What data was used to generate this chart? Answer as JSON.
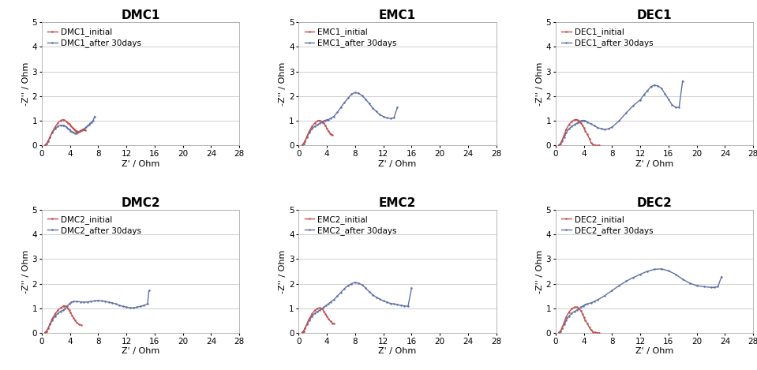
{
  "panels": [
    {
      "title": "DMC1",
      "initial_label": "DMC1_initial",
      "after_label": "DMC1_after 30days",
      "initial_color": "#c0504d",
      "after_color": "#6070a8",
      "xlim": [
        0,
        28
      ],
      "ylim": [
        0,
        5
      ],
      "xticks": [
        0,
        4,
        8,
        12,
        16,
        20,
        24,
        28
      ],
      "yticks": [
        0,
        1,
        2,
        3,
        4,
        5
      ],
      "initial_x": [
        0.5,
        0.7,
        0.9,
        1.2,
        1.5,
        1.9,
        2.3,
        2.7,
        3.0,
        3.2,
        3.5,
        3.7,
        3.9,
        4.1,
        4.2,
        4.4,
        4.5,
        4.6,
        4.7,
        4.8,
        4.9,
        5.0,
        5.1,
        5.2,
        5.4,
        5.6,
        5.8,
        6.0,
        6.2
      ],
      "initial_y": [
        0.02,
        0.08,
        0.18,
        0.35,
        0.55,
        0.75,
        0.92,
        1.02,
        1.05,
        1.03,
        0.98,
        0.92,
        0.88,
        0.82,
        0.78,
        0.72,
        0.68,
        0.65,
        0.62,
        0.6,
        0.58,
        0.56,
        0.55,
        0.56,
        0.58,
        0.62,
        0.65,
        0.65,
        0.62
      ],
      "after_x": [
        0.5,
        0.7,
        0.9,
        1.2,
        1.5,
        1.9,
        2.3,
        2.7,
        3.0,
        3.2,
        3.5,
        3.7,
        3.9,
        4.1,
        4.3,
        4.5,
        4.7,
        4.9,
        5.1,
        5.3,
        5.5,
        5.7,
        5.9,
        6.1,
        6.3,
        6.5,
        6.7,
        6.9,
        7.1,
        7.3,
        7.5
      ],
      "after_y": [
        0.02,
        0.08,
        0.18,
        0.35,
        0.52,
        0.68,
        0.78,
        0.82,
        0.82,
        0.8,
        0.75,
        0.7,
        0.65,
        0.6,
        0.56,
        0.52,
        0.5,
        0.5,
        0.52,
        0.55,
        0.58,
        0.62,
        0.66,
        0.7,
        0.75,
        0.8,
        0.85,
        0.9,
        0.95,
        1.02,
        1.18
      ]
    },
    {
      "title": "EMC1",
      "initial_label": "EMC1_initial",
      "after_label": "EMC1_after 30days",
      "initial_color": "#c0504d",
      "after_color": "#6070a8",
      "xlim": [
        0,
        28
      ],
      "ylim": [
        0,
        5
      ],
      "xticks": [
        0,
        4,
        8,
        12,
        16,
        20,
        24,
        28
      ],
      "yticks": [
        0,
        1,
        2,
        3,
        4,
        5
      ],
      "initial_x": [
        0.5,
        0.7,
        0.9,
        1.2,
        1.5,
        1.9,
        2.3,
        2.7,
        3.0,
        3.3,
        3.6,
        3.8,
        4.0,
        4.2,
        4.4,
        4.6,
        4.8
      ],
      "initial_y": [
        0.02,
        0.08,
        0.18,
        0.38,
        0.58,
        0.78,
        0.92,
        1.0,
        1.02,
        0.98,
        0.9,
        0.8,
        0.7,
        0.6,
        0.5,
        0.45,
        0.42
      ],
      "after_x": [
        0.5,
        0.7,
        0.9,
        1.2,
        1.5,
        1.9,
        2.3,
        2.7,
        3.0,
        3.3,
        3.6,
        3.8,
        4.0,
        4.2,
        4.5,
        5.0,
        5.5,
        6.0,
        6.5,
        7.0,
        7.5,
        8.0,
        8.5,
        9.0,
        9.5,
        10.0,
        10.5,
        11.0,
        11.5,
        12.0,
        12.5,
        13.0,
        13.5,
        14.0
      ],
      "after_y": [
        0.02,
        0.08,
        0.18,
        0.35,
        0.52,
        0.68,
        0.78,
        0.85,
        0.9,
        0.95,
        1.0,
        1.02,
        1.05,
        1.05,
        1.1,
        1.18,
        1.35,
        1.55,
        1.75,
        1.92,
        2.08,
        2.15,
        2.12,
        2.02,
        1.88,
        1.7,
        1.52,
        1.38,
        1.25,
        1.18,
        1.12,
        1.1,
        1.12,
        1.55
      ]
    },
    {
      "title": "DEC1",
      "initial_label": "DEC1_initial",
      "after_label": "DEC1_after 30days",
      "initial_color": "#c0504d",
      "after_color": "#6070a8",
      "xlim": [
        0,
        28
      ],
      "ylim": [
        0,
        5
      ],
      "xticks": [
        0,
        4,
        8,
        12,
        16,
        20,
        24,
        28
      ],
      "yticks": [
        0,
        1,
        2,
        3,
        4,
        5
      ],
      "initial_x": [
        0.5,
        0.7,
        0.9,
        1.2,
        1.5,
        1.9,
        2.3,
        2.7,
        3.0,
        3.3,
        3.6,
        3.8,
        4.0,
        4.2,
        4.5,
        4.8,
        5.0,
        5.3,
        5.6,
        5.9,
        6.2
      ],
      "initial_y": [
        0.02,
        0.08,
        0.2,
        0.42,
        0.65,
        0.85,
        0.98,
        1.05,
        1.05,
        1.02,
        0.92,
        0.82,
        0.72,
        0.6,
        0.45,
        0.28,
        0.12,
        0.04,
        0.01,
        0.0,
        0.0
      ],
      "after_x": [
        0.5,
        0.7,
        0.9,
        1.2,
        1.5,
        1.9,
        2.3,
        2.7,
        3.0,
        3.3,
        3.6,
        3.8,
        4.0,
        4.2,
        4.5,
        5.0,
        5.5,
        6.0,
        6.5,
        7.0,
        7.5,
        8.0,
        9.0,
        10.0,
        11.0,
        12.0,
        12.5,
        13.0,
        13.5,
        14.0,
        14.5,
        15.0,
        15.5,
        16.0,
        16.5,
        17.0,
        17.5,
        18.0
      ],
      "after_y": [
        0.02,
        0.08,
        0.18,
        0.35,
        0.52,
        0.68,
        0.78,
        0.85,
        0.9,
        0.95,
        1.0,
        1.02,
        1.02,
        1.0,
        0.95,
        0.88,
        0.8,
        0.72,
        0.68,
        0.65,
        0.68,
        0.75,
        1.0,
        1.32,
        1.62,
        1.85,
        2.05,
        2.22,
        2.38,
        2.45,
        2.42,
        2.32,
        2.1,
        1.88,
        1.65,
        1.55,
        1.55,
        2.62
      ]
    },
    {
      "title": "DMC2",
      "initial_label": "DMC2_initial",
      "after_label": "DMC2_after 30days",
      "initial_color": "#c0504d",
      "after_color": "#6070a8",
      "xlim": [
        0,
        28
      ],
      "ylim": [
        0,
        5
      ],
      "xticks": [
        0,
        4,
        8,
        12,
        16,
        20,
        24,
        28
      ],
      "yticks": [
        0,
        1,
        2,
        3,
        4,
        5
      ],
      "initial_x": [
        0.5,
        0.7,
        0.9,
        1.2,
        1.5,
        1.9,
        2.3,
        2.7,
        3.0,
        3.2,
        3.5,
        3.7,
        3.9,
        4.1,
        4.3,
        4.5,
        4.7,
        5.0,
        5.3,
        5.6
      ],
      "initial_y": [
        0.02,
        0.08,
        0.18,
        0.38,
        0.58,
        0.78,
        0.92,
        1.02,
        1.08,
        1.1,
        1.08,
        1.0,
        0.92,
        0.82,
        0.72,
        0.62,
        0.52,
        0.42,
        0.35,
        0.32
      ],
      "after_x": [
        0.5,
        0.7,
        0.9,
        1.2,
        1.5,
        1.9,
        2.3,
        2.7,
        3.0,
        3.3,
        3.6,
        3.9,
        4.2,
        4.5,
        5.0,
        5.5,
        6.0,
        6.5,
        7.0,
        7.5,
        8.0,
        8.5,
        9.0,
        9.5,
        10.0,
        10.5,
        11.0,
        11.5,
        12.0,
        12.5,
        13.0,
        13.5,
        14.0,
        14.5,
        15.0,
        15.2
      ],
      "after_y": [
        0.02,
        0.08,
        0.18,
        0.35,
        0.52,
        0.68,
        0.8,
        0.88,
        0.92,
        0.98,
        1.08,
        1.18,
        1.25,
        1.28,
        1.28,
        1.26,
        1.25,
        1.26,
        1.28,
        1.3,
        1.32,
        1.3,
        1.28,
        1.25,
        1.22,
        1.18,
        1.12,
        1.08,
        1.05,
        1.02,
        1.02,
        1.05,
        1.08,
        1.12,
        1.18,
        1.72
      ]
    },
    {
      "title": "EMC2",
      "initial_label": "EMC2_initial",
      "after_label": "EMC2_after 30days",
      "initial_color": "#c0504d",
      "after_color": "#6070a8",
      "xlim": [
        0,
        28
      ],
      "ylim": [
        0,
        5
      ],
      "xticks": [
        0,
        4,
        8,
        12,
        16,
        20,
        24,
        28
      ],
      "yticks": [
        0,
        1,
        2,
        3,
        4,
        5
      ],
      "initial_x": [
        0.5,
        0.7,
        0.9,
        1.2,
        1.5,
        1.9,
        2.3,
        2.7,
        3.0,
        3.3,
        3.6,
        3.8,
        4.0,
        4.2,
        4.5,
        4.8,
        5.0
      ],
      "initial_y": [
        0.02,
        0.08,
        0.18,
        0.38,
        0.58,
        0.78,
        0.92,
        1.0,
        1.02,
        0.98,
        0.88,
        0.78,
        0.68,
        0.58,
        0.48,
        0.4,
        0.38
      ],
      "after_x": [
        0.5,
        0.7,
        0.9,
        1.2,
        1.5,
        1.9,
        2.3,
        2.7,
        3.0,
        3.3,
        3.6,
        3.9,
        4.2,
        4.5,
        5.0,
        5.5,
        6.0,
        6.5,
        7.0,
        7.5,
        8.0,
        8.5,
        9.0,
        9.5,
        10.0,
        10.5,
        11.0,
        11.5,
        12.0,
        12.5,
        13.0,
        13.5,
        14.0,
        14.5,
        15.0,
        15.5,
        16.0
      ],
      "after_y": [
        0.02,
        0.08,
        0.18,
        0.35,
        0.52,
        0.68,
        0.8,
        0.88,
        0.92,
        0.98,
        1.05,
        1.12,
        1.18,
        1.25,
        1.35,
        1.5,
        1.65,
        1.8,
        1.92,
        2.0,
        2.05,
        2.02,
        1.95,
        1.82,
        1.68,
        1.55,
        1.45,
        1.38,
        1.3,
        1.25,
        1.2,
        1.18,
        1.15,
        1.12,
        1.1,
        1.08,
        1.82
      ]
    },
    {
      "title": "DEC2",
      "initial_label": "DEC2_initial",
      "after_label": "DEC2_after 30days",
      "initial_color": "#c0504d",
      "after_color": "#6070a8",
      "xlim": [
        0,
        28
      ],
      "ylim": [
        0,
        5
      ],
      "xticks": [
        0,
        4,
        8,
        12,
        16,
        20,
        24,
        28
      ],
      "yticks": [
        0,
        1,
        2,
        3,
        4,
        5
      ],
      "initial_x": [
        0.5,
        0.7,
        0.9,
        1.2,
        1.5,
        1.9,
        2.3,
        2.7,
        3.0,
        3.3,
        3.6,
        3.8,
        4.0,
        4.2,
        4.5,
        4.8,
        5.0,
        5.3,
        5.6,
        5.9,
        6.2
      ],
      "initial_y": [
        0.02,
        0.08,
        0.2,
        0.42,
        0.65,
        0.85,
        0.98,
        1.05,
        1.05,
        1.0,
        0.9,
        0.78,
        0.65,
        0.52,
        0.38,
        0.22,
        0.12,
        0.05,
        0.02,
        0.01,
        0.0
      ],
      "after_x": [
        0.5,
        0.7,
        0.9,
        1.2,
        1.5,
        1.9,
        2.3,
        2.7,
        3.0,
        3.3,
        3.6,
        3.9,
        4.2,
        4.5,
        5.0,
        5.5,
        6.0,
        7.0,
        8.0,
        9.0,
        10.0,
        11.0,
        12.0,
        13.0,
        14.0,
        15.0,
        16.0,
        17.0,
        18.0,
        19.0,
        20.0,
        21.0,
        22.0,
        22.5,
        23.0,
        23.5
      ],
      "after_y": [
        0.02,
        0.08,
        0.18,
        0.35,
        0.52,
        0.68,
        0.8,
        0.88,
        0.92,
        0.98,
        1.05,
        1.1,
        1.15,
        1.18,
        1.22,
        1.28,
        1.35,
        1.52,
        1.72,
        1.92,
        2.1,
        2.25,
        2.38,
        2.5,
        2.58,
        2.6,
        2.52,
        2.38,
        2.18,
        2.02,
        1.92,
        1.88,
        1.85,
        1.85,
        1.88,
        2.28
      ]
    }
  ],
  "xlabel": "Z' / Ohm",
  "ylabel": "-Z'' / Ohm",
  "bg_color": "#ffffff",
  "grid_color": "#c8c8c8",
  "dot_size": 1.8,
  "line_width": 1.0,
  "title_fontsize": 11,
  "label_fontsize": 8,
  "tick_fontsize": 7.5,
  "legend_fontsize": 7.5
}
